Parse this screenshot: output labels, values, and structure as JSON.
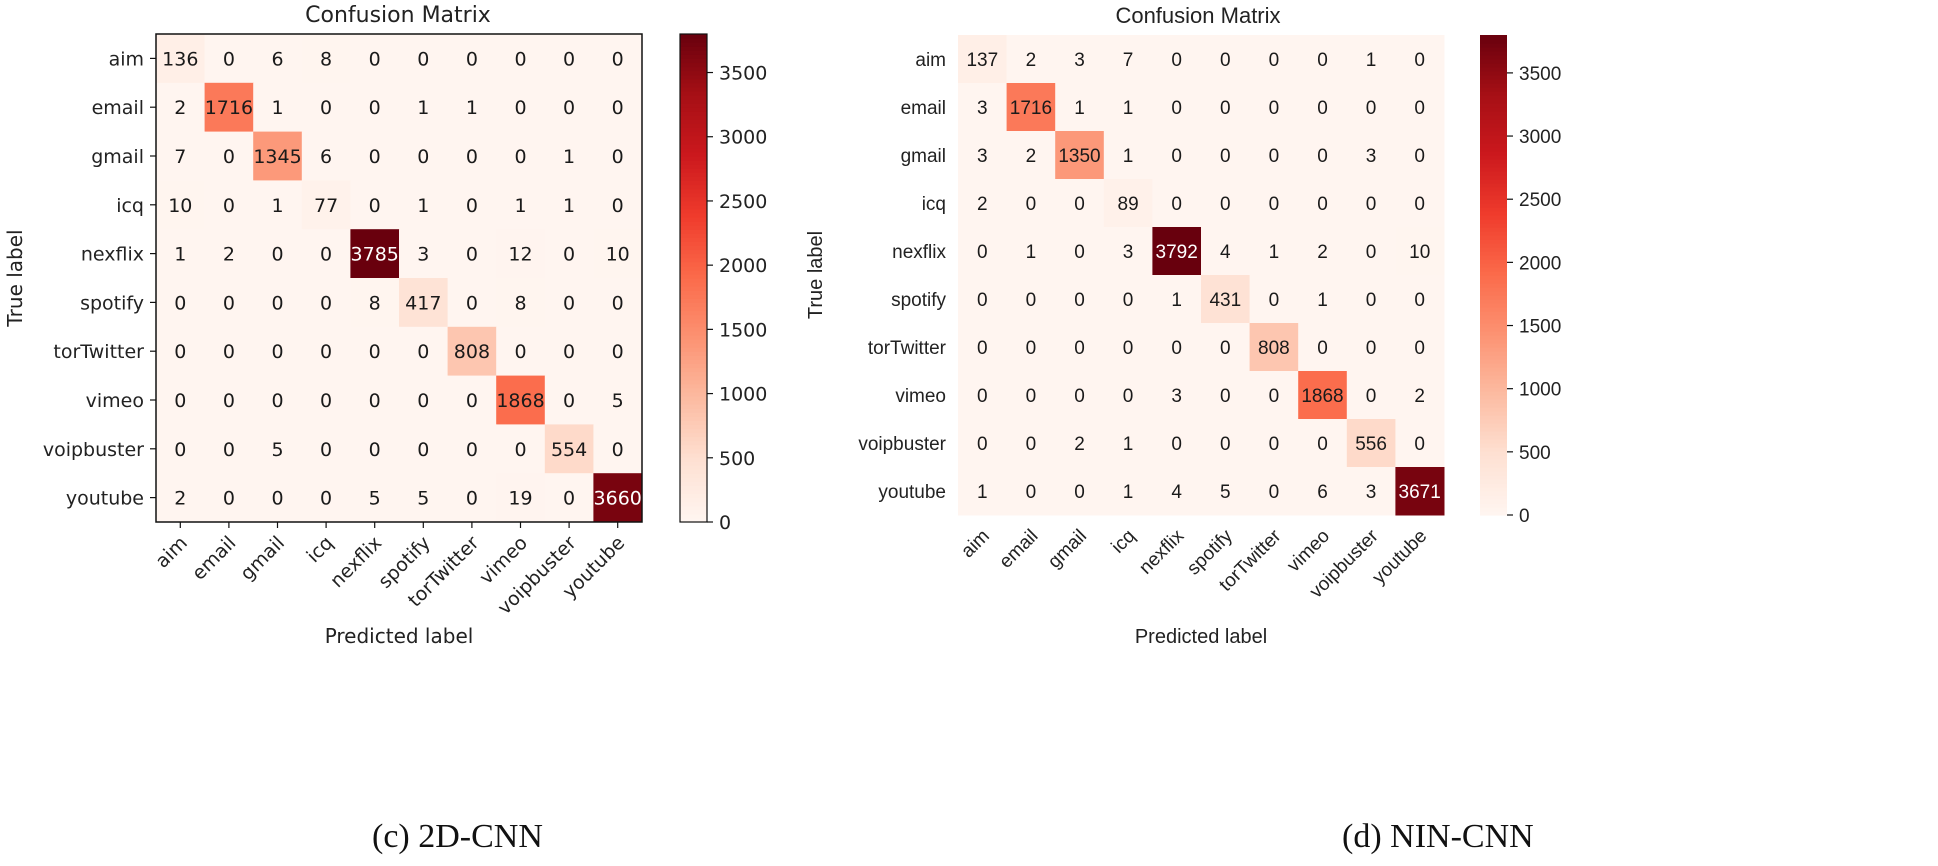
{
  "colors": {
    "low": "#fff5f0",
    "high": "#67000d"
  },
  "chart_data": [
    {
      "type": "heatmap",
      "title": "Confusion Matrix",
      "xlabel": "Predicted label",
      "ylabel": "True label",
      "caption": "(c) 2D-CNN",
      "labels": [
        "aim",
        "email",
        "gmail",
        "icq",
        "nexflix",
        "spotify",
        "torTwitter",
        "vimeo",
        "voipbuster",
        "youtube"
      ],
      "matrix": [
        [
          136,
          0,
          6,
          8,
          0,
          0,
          0,
          0,
          0,
          0
        ],
        [
          2,
          1716,
          1,
          0,
          0,
          1,
          1,
          0,
          0,
          0
        ],
        [
          7,
          0,
          1345,
          6,
          0,
          0,
          0,
          0,
          1,
          0
        ],
        [
          10,
          0,
          1,
          77,
          0,
          1,
          0,
          1,
          1,
          0
        ],
        [
          1,
          2,
          0,
          0,
          3785,
          3,
          0,
          12,
          0,
          10
        ],
        [
          0,
          0,
          0,
          0,
          8,
          417,
          0,
          8,
          0,
          0
        ],
        [
          0,
          0,
          0,
          0,
          0,
          0,
          808,
          0,
          0,
          0
        ],
        [
          0,
          0,
          0,
          0,
          0,
          0,
          0,
          1868,
          0,
          5
        ],
        [
          0,
          0,
          5,
          0,
          0,
          0,
          0,
          0,
          554,
          0
        ],
        [
          2,
          0,
          0,
          0,
          5,
          5,
          0,
          19,
          0,
          3660
        ]
      ],
      "colorbar": {
        "range": [
          0,
          3800
        ],
        "ticks": [
          0,
          500,
          1000,
          1500,
          2000,
          2500,
          3000,
          3500
        ]
      }
    },
    {
      "type": "heatmap",
      "title": "Confusion Matrix",
      "xlabel": "Predicted label",
      "ylabel": "True label",
      "caption": "(d) NIN-CNN",
      "labels": [
        "aim",
        "email",
        "gmail",
        "icq",
        "nexflix",
        "spotify",
        "torTwitter",
        "vimeo",
        "voipbuster",
        "youtube"
      ],
      "matrix": [
        [
          137,
          2,
          3,
          7,
          0,
          0,
          0,
          0,
          1,
          0
        ],
        [
          3,
          1716,
          1,
          1,
          0,
          0,
          0,
          0,
          0,
          0
        ],
        [
          3,
          2,
          1350,
          1,
          0,
          0,
          0,
          0,
          3,
          0
        ],
        [
          2,
          0,
          0,
          89,
          0,
          0,
          0,
          0,
          0,
          0
        ],
        [
          0,
          1,
          0,
          3,
          3792,
          4,
          1,
          2,
          0,
          10
        ],
        [
          0,
          0,
          0,
          0,
          1,
          431,
          0,
          1,
          0,
          0
        ],
        [
          0,
          0,
          0,
          0,
          0,
          0,
          808,
          0,
          0,
          0
        ],
        [
          0,
          0,
          0,
          0,
          3,
          0,
          0,
          1868,
          0,
          2
        ],
        [
          0,
          0,
          2,
          1,
          0,
          0,
          0,
          0,
          556,
          0
        ],
        [
          1,
          0,
          0,
          1,
          4,
          5,
          0,
          6,
          3,
          3671
        ]
      ],
      "colorbar": {
        "range": [
          0,
          3800
        ],
        "ticks": [
          0,
          500,
          1000,
          1500,
          2000,
          2500,
          3000,
          3500
        ]
      }
    }
  ]
}
